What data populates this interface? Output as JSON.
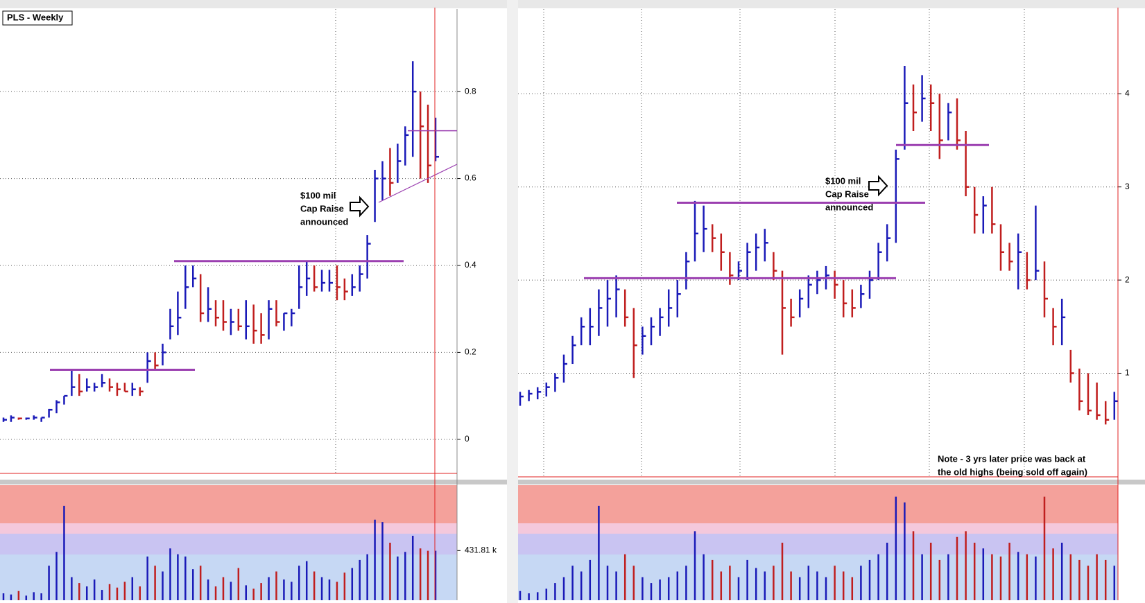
{
  "chart_data": [
    {
      "type": "ohlc",
      "title": "PLS - Weekly",
      "high": [
        0.05,
        0.055,
        0.05,
        0.05,
        0.055,
        0.05,
        0.07,
        0.09,
        0.1,
        0.16,
        0.15,
        0.14,
        0.13,
        0.15,
        0.14,
        0.13,
        0.13,
        0.13,
        0.12,
        0.2,
        0.2,
        0.22,
        0.3,
        0.34,
        0.4,
        0.4,
        0.38,
        0.35,
        0.32,
        0.32,
        0.3,
        0.3,
        0.32,
        0.31,
        0.29,
        0.32,
        0.32,
        0.29,
        0.3,
        0.4,
        0.41,
        0.4,
        0.39,
        0.39,
        0.4,
        0.37,
        0.38,
        0.4,
        0.47,
        0.62,
        0.64,
        0.67,
        0.68,
        0.72,
        0.87,
        0.8,
        0.77,
        0.74
      ],
      "low": [
        0.04,
        0.04,
        0.045,
        0.045,
        0.045,
        0.04,
        0.05,
        0.06,
        0.08,
        0.1,
        0.1,
        0.11,
        0.11,
        0.12,
        0.11,
        0.1,
        0.11,
        0.1,
        0.1,
        0.13,
        0.16,
        0.17,
        0.23,
        0.24,
        0.3,
        0.35,
        0.27,
        0.27,
        0.26,
        0.25,
        0.24,
        0.25,
        0.23,
        0.22,
        0.22,
        0.23,
        0.26,
        0.25,
        0.26,
        0.3,
        0.33,
        0.34,
        0.34,
        0.34,
        0.32,
        0.32,
        0.33,
        0.34,
        0.37,
        0.5,
        0.55,
        0.56,
        0.59,
        0.63,
        0.65,
        0.6,
        0.59,
        0.64
      ],
      "close": [
        0.045,
        0.05,
        0.048,
        0.048,
        0.05,
        0.05,
        0.068,
        0.085,
        0.1,
        0.12,
        0.11,
        0.12,
        0.12,
        0.13,
        0.12,
        0.115,
        0.11,
        0.115,
        0.11,
        0.18,
        0.17,
        0.2,
        0.26,
        0.28,
        0.35,
        0.37,
        0.29,
        0.3,
        0.28,
        0.27,
        0.27,
        0.26,
        0.26,
        0.25,
        0.24,
        0.3,
        0.27,
        0.29,
        0.29,
        0.35,
        0.37,
        0.35,
        0.36,
        0.36,
        0.35,
        0.34,
        0.35,
        0.38,
        0.45,
        0.6,
        0.6,
        0.59,
        0.64,
        0.7,
        0.8,
        0.72,
        0.63,
        0.65
      ],
      "volume": [
        60,
        50,
        80,
        40,
        70,
        60,
        300,
        420,
        820,
        200,
        150,
        120,
        180,
        90,
        140,
        110,
        160,
        200,
        120,
        380,
        300,
        250,
        450,
        400,
        380,
        270,
        300,
        180,
        120,
        200,
        160,
        280,
        130,
        100,
        150,
        200,
        250,
        180,
        160,
        300,
        340,
        250,
        200,
        180,
        160,
        240,
        280,
        350,
        400,
        700,
        680,
        500,
        380,
        420,
        560,
        450,
        430,
        430
      ],
      "up_color": "#1a1ab8",
      "down_color": "#c01e1e",
      "ylim": [
        -0.08,
        0.99
      ],
      "yticks": [
        0,
        0.2,
        0.4,
        0.6,
        0.8
      ],
      "volume_ylim": [
        0,
        1000
      ],
      "volume_yticks": [
        {
          "value": 431.81,
          "label": "431.81 k"
        }
      ],
      "levels": [
        0.16,
        0.41,
        0.71
      ],
      "level_color": "#9b3fb0",
      "grid": true,
      "annotation": [
        "$100 mil",
        "Cap Raise",
        "announced"
      ]
    },
    {
      "type": "ohlc",
      "high": [
        0.8,
        0.82,
        0.85,
        0.9,
        1.0,
        1.2,
        1.4,
        1.6,
        1.7,
        1.9,
        2.0,
        2.05,
        1.9,
        1.7,
        1.5,
        1.6,
        1.7,
        1.9,
        2.0,
        2.3,
        2.85,
        2.8,
        2.6,
        2.5,
        2.3,
        2.2,
        2.4,
        2.5,
        2.55,
        2.3,
        2.1,
        1.8,
        1.9,
        2.05,
        2.1,
        2.15,
        2.1,
        2.0,
        1.9,
        1.95,
        2.1,
        2.4,
        2.6,
        3.4,
        4.3,
        4.1,
        4.2,
        4.1,
        4.0,
        3.9,
        3.95,
        3.6,
        3.0,
        2.9,
        3.0,
        2.6,
        2.4,
        2.5,
        2.3,
        2.8,
        2.2,
        1.7,
        1.8,
        1.25,
        1.05,
        1.0,
        0.9,
        0.7,
        0.8
      ],
      "low": [
        0.65,
        0.7,
        0.72,
        0.75,
        0.8,
        0.9,
        1.1,
        1.3,
        1.3,
        1.4,
        1.5,
        1.6,
        1.5,
        0.95,
        1.2,
        1.3,
        1.4,
        1.5,
        1.6,
        1.9,
        2.2,
        2.3,
        2.3,
        2.1,
        1.95,
        2.0,
        2.0,
        2.1,
        2.2,
        2.0,
        1.2,
        1.5,
        1.6,
        1.7,
        1.85,
        1.9,
        1.8,
        1.6,
        1.6,
        1.7,
        1.8,
        2.0,
        2.2,
        2.4,
        3.4,
        3.6,
        3.7,
        3.6,
        3.3,
        3.5,
        3.4,
        2.9,
        2.5,
        2.5,
        2.5,
        2.1,
        2.1,
        1.9,
        1.9,
        2.0,
        1.6,
        1.3,
        1.3,
        0.9,
        0.6,
        0.55,
        0.5,
        0.45,
        0.5
      ],
      "close": [
        0.75,
        0.78,
        0.8,
        0.85,
        0.95,
        1.1,
        1.3,
        1.5,
        1.5,
        1.7,
        1.8,
        1.9,
        1.6,
        1.3,
        1.4,
        1.5,
        1.6,
        1.7,
        1.85,
        2.2,
        2.5,
        2.55,
        2.45,
        2.3,
        2.05,
        2.1,
        2.3,
        2.35,
        2.4,
        2.1,
        1.7,
        1.6,
        1.8,
        1.95,
        2.0,
        2.05,
        1.95,
        1.75,
        1.7,
        1.85,
        2.0,
        2.3,
        2.45,
        3.3,
        3.9,
        3.8,
        3.95,
        3.9,
        3.5,
        3.8,
        3.5,
        3.0,
        2.7,
        2.8,
        2.6,
        2.3,
        2.2,
        2.3,
        2.0,
        2.1,
        1.8,
        1.5,
        1.6,
        1.0,
        0.7,
        0.6,
        0.55,
        0.5,
        0.7
      ],
      "volume": [
        80,
        60,
        70,
        100,
        150,
        200,
        300,
        250,
        350,
        820,
        300,
        250,
        400,
        300,
        200,
        150,
        180,
        200,
        250,
        300,
        600,
        400,
        350,
        250,
        300,
        200,
        350,
        280,
        250,
        300,
        500,
        250,
        200,
        300,
        250,
        200,
        300,
        250,
        200,
        300,
        350,
        400,
        500,
        900,
        850,
        600,
        400,
        500,
        350,
        400,
        550,
        600,
        500,
        450,
        400,
        380,
        500,
        420,
        400,
        380,
        900,
        450,
        500,
        400,
        350,
        300,
        400,
        350,
        300
      ],
      "up_color": "#1a1ab8",
      "down_color": "#c01e1e",
      "ylim": [
        -0.12,
        4.91
      ],
      "yticks": [
        1,
        2,
        3,
        4
      ],
      "volume_ylim": [
        0,
        1000
      ],
      "levels": [
        2.02,
        2.83,
        3.45
      ],
      "level_color": "#9b3fb0",
      "grid": true,
      "annotation": [
        "$100 mil",
        "Cap Raise",
        "announced"
      ],
      "note": [
        "Note - 3 yrs later price was back at",
        "the old highs (being sold off again)"
      ]
    }
  ]
}
